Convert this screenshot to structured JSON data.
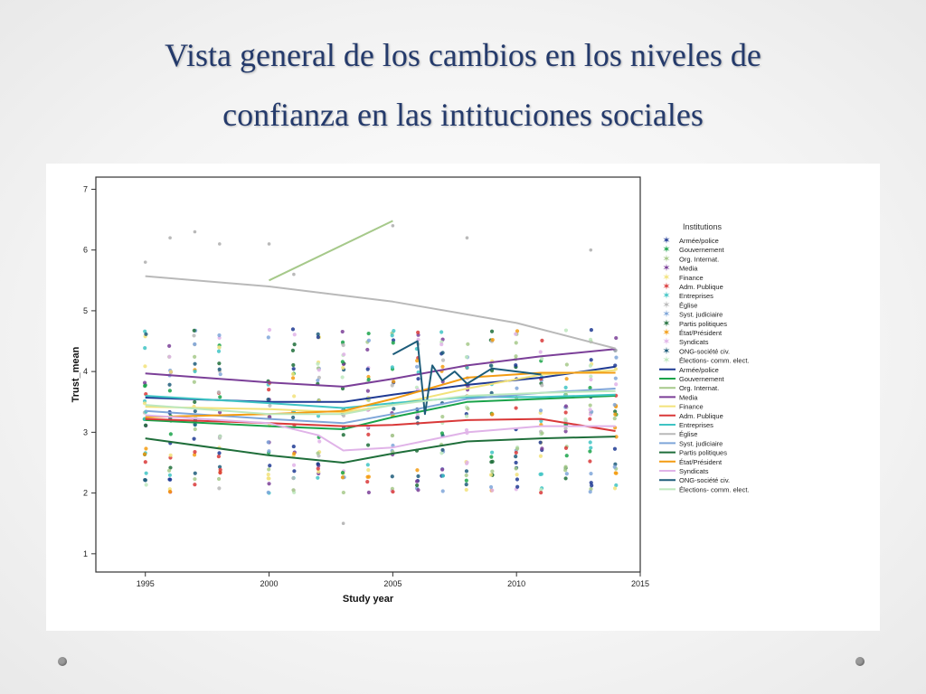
{
  "slide": {
    "title_line1": "Vista general de los cambios en los niveles de",
    "title_line2": "confianza en las intituciones sociales"
  },
  "chart_data": {
    "type": "line",
    "xlabel": "Study year",
    "ylabel": "Trust_mean",
    "xlim": [
      1993,
      2015
    ],
    "ylim": [
      0.7,
      7.2
    ],
    "x_ticks": [
      1995,
      2000,
      2005,
      2010,
      2015
    ],
    "y_ticks": [
      1,
      2,
      3,
      4,
      5,
      6,
      7
    ],
    "grid": false,
    "legend_placement": "right",
    "legend_title": "Institutions",
    "legend_markers": [
      {
        "name": "Armée/police",
        "color": "#1f3a93"
      },
      {
        "name": "Gouvernement",
        "color": "#1aa34a"
      },
      {
        "name": "Org. Internat.",
        "color": "#a6c98a"
      },
      {
        "name": "Media",
        "color": "#7b3f98"
      },
      {
        "name": "Finance",
        "color": "#f2e27a"
      },
      {
        "name": "Adm. Publique",
        "color": "#d93838"
      },
      {
        "name": "Entreprises",
        "color": "#3fc4c4"
      },
      {
        "name": "Église",
        "color": "#b9b9b9"
      },
      {
        "name": "Syst. judiciaire",
        "color": "#7fa6d9"
      },
      {
        "name": "Partis politiques",
        "color": "#1f6e3a"
      },
      {
        "name": "État/Président",
        "color": "#f39c12"
      },
      {
        "name": "Syndicats",
        "color": "#e0b3e8"
      },
      {
        "name": "ONG-société civ.",
        "color": "#1d5c7a"
      },
      {
        "name": "Élections- comm. elect.",
        "color": "#bde8bd"
      }
    ],
    "series": [
      {
        "name": "Armée/police",
        "color": "#1f3a93",
        "x": [
          1995,
          2000,
          2003,
          2005,
          2008,
          2011,
          2014
        ],
        "values": [
          3.57,
          3.5,
          3.5,
          3.62,
          3.78,
          3.9,
          4.08
        ]
      },
      {
        "name": "Gouvernement",
        "color": "#1aa34a",
        "x": [
          1995,
          2000,
          2003,
          2005,
          2008,
          2011,
          2014
        ],
        "values": [
          3.2,
          3.1,
          3.05,
          3.25,
          3.5,
          3.55,
          3.6
        ]
      },
      {
        "name": "Org. Internat.",
        "color": "#a6c98a",
        "x": [
          2000,
          2005
        ],
        "values": [
          5.5,
          6.48
        ]
      },
      {
        "name": "Media",
        "color": "#7b3f98",
        "x": [
          1995,
          2000,
          2003,
          2005,
          2008,
          2011,
          2014
        ],
        "values": [
          3.97,
          3.82,
          3.75,
          3.88,
          4.1,
          4.25,
          4.37
        ]
      },
      {
        "name": "Finance",
        "color": "#f2e27a",
        "x": [
          1995,
          2000,
          2003,
          2005,
          2008,
          2011,
          2014
        ],
        "values": [
          3.42,
          3.38,
          3.33,
          3.45,
          3.72,
          3.95,
          4.02
        ]
      },
      {
        "name": "Adm. Publique",
        "color": "#d93838",
        "x": [
          1995,
          2000,
          2003,
          2005,
          2008,
          2011,
          2014
        ],
        "values": [
          3.22,
          3.15,
          3.1,
          3.12,
          3.2,
          3.22,
          3.02
        ]
      },
      {
        "name": "Entreprises",
        "color": "#3fc4c4",
        "x": [
          1995,
          2000,
          2003,
          2005,
          2008,
          2011,
          2014
        ],
        "values": [
          3.6,
          3.48,
          3.4,
          3.48,
          3.58,
          3.58,
          3.62
        ]
      },
      {
        "name": "Église",
        "color": "#b9b9b9",
        "x": [
          1995,
          2000,
          2005,
          2010,
          2014
        ],
        "values": [
          5.57,
          5.4,
          5.15,
          4.8,
          4.38
        ]
      },
      {
        "name": "Syst. judiciaire",
        "color": "#7fa6d9",
        "x": [
          1995,
          2000,
          2003,
          2005,
          2008,
          2011,
          2014
        ],
        "values": [
          3.35,
          3.22,
          3.15,
          3.3,
          3.55,
          3.65,
          3.72
        ]
      },
      {
        "name": "Partis politiques",
        "color": "#1f6e3a",
        "x": [
          1995,
          2000,
          2003,
          2005,
          2008,
          2011,
          2014
        ],
        "values": [
          2.9,
          2.62,
          2.5,
          2.65,
          2.85,
          2.9,
          2.93
        ]
      },
      {
        "name": "État/Président",
        "color": "#f39c12",
        "x": [
          1995,
          2000,
          2003,
          2005,
          2008,
          2011,
          2014
        ],
        "values": [
          3.25,
          3.3,
          3.35,
          3.55,
          3.9,
          3.98,
          3.98
        ]
      },
      {
        "name": "Syndicats",
        "color": "#e0b3e8",
        "x": [
          1995,
          2000,
          2002,
          2003,
          2005,
          2008,
          2011,
          2014
        ],
        "values": [
          3.28,
          3.15,
          2.95,
          2.7,
          2.75,
          3.0,
          3.1,
          3.1
        ]
      },
      {
        "name": "ONG-société civ.",
        "color": "#1d5c7a",
        "x": [
          2005,
          2006,
          2006.3,
          2006.6,
          2007,
          2007.5,
          2008,
          2009,
          2010,
          2011
        ],
        "values": [
          4.28,
          4.5,
          3.3,
          4.1,
          3.85,
          4.0,
          3.8,
          4.05,
          4.0,
          3.95
        ]
      },
      {
        "name": "Élections- comm. elect.",
        "color": "#bde8bd",
        "x": [
          1995,
          2000,
          2003,
          2005,
          2008,
          2011,
          2014
        ],
        "values": [
          3.45,
          3.3,
          3.3,
          3.45,
          3.6,
          3.65,
          3.68
        ]
      }
    ]
  }
}
